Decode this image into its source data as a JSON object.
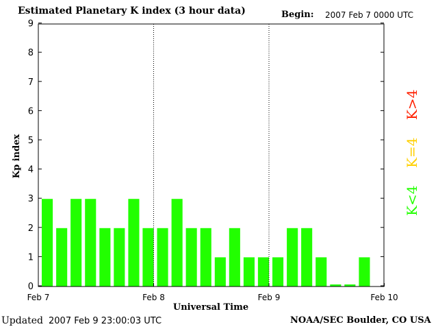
{
  "header": {
    "title": "Estimated Planetary K index (3 hour data)",
    "begin_label": "Begin:",
    "begin_value": "2007 Feb 7 0000 UTC"
  },
  "footer": {
    "updated_label": "Updated",
    "updated_value": "2007 Feb  9 23:00:03 UTC",
    "credit": "NOAA/SEC Boulder, CO USA"
  },
  "legend": {
    "high": "K>4",
    "equal": "K=4",
    "low": "K<4",
    "colors": {
      "high": "#ff2000",
      "equal": "#ffd000",
      "low": "#22ff00"
    }
  },
  "chart_data": {
    "type": "bar",
    "xlabel": "Universal Time",
    "ylabel": "Kp index",
    "ylim": [
      0,
      9
    ],
    "yticks": [
      "0",
      "1",
      "2",
      "3",
      "4",
      "5",
      "6",
      "7",
      "8",
      "9"
    ],
    "xticks": [
      "Feb 7",
      "Feb 8",
      "Feb 9",
      "Feb 10"
    ],
    "bar_color": "#22ff00",
    "values": [
      3,
      2,
      3,
      3,
      2,
      2,
      3,
      2,
      2,
      3,
      2,
      2,
      1,
      2,
      1,
      1,
      1,
      2,
      2,
      1,
      0,
      0,
      1
    ]
  }
}
